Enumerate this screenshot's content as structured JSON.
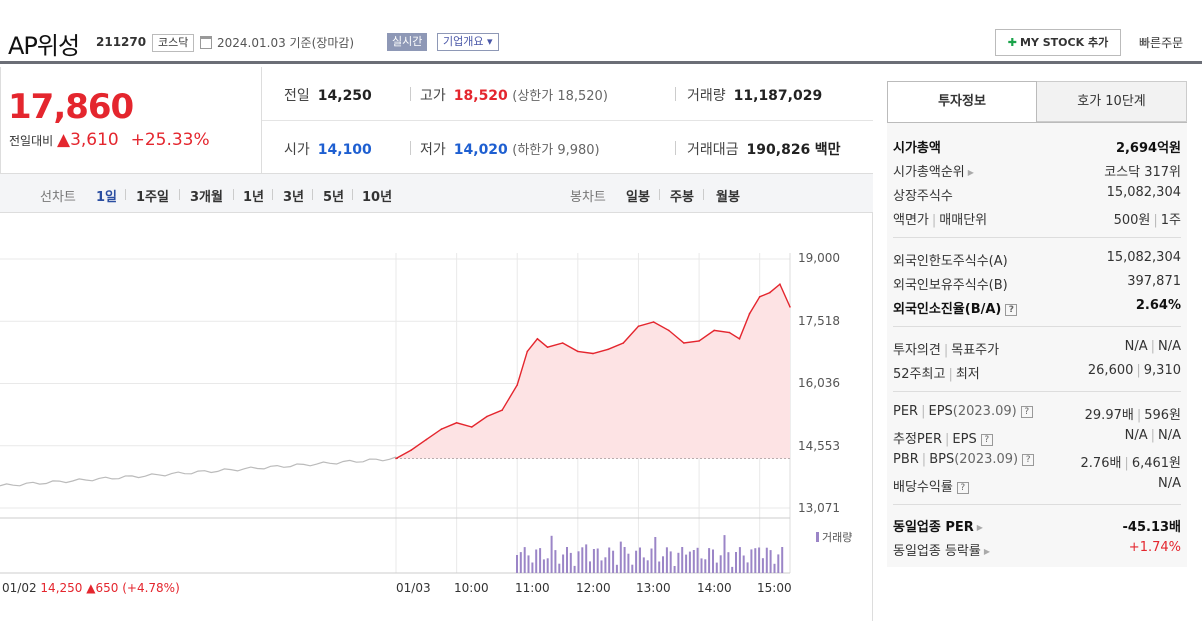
{
  "header": {
    "name": "AP위성",
    "code": "211270",
    "market": "코스닥",
    "date": "2024.01.03 기준(장마감)",
    "live_label": "실시간",
    "company_info_label": "기업개요",
    "mystock_label": "MY STOCK 추가",
    "quick_order_label": "빠른주문"
  },
  "price": {
    "current": "17,860",
    "change_label": "전일대비",
    "change": "3,610",
    "change_pct": "+25.33%"
  },
  "quote": {
    "prev_close": {
      "label": "전일",
      "value": "14,250"
    },
    "high": {
      "label": "고가",
      "value": "18,520",
      "limit_label": "(상한가 18,520)"
    },
    "volume": {
      "label": "거래량",
      "value": "11,187,029"
    },
    "open": {
      "label": "시가",
      "value": "14,100"
    },
    "low": {
      "label": "저가",
      "value": "14,020",
      "limit_label": "(하한가 9,980)"
    },
    "amount": {
      "label": "거래대금",
      "value": "190,826",
      "unit": "백만"
    }
  },
  "period_bar": {
    "line_label": "선차트",
    "line_periods": [
      "1일",
      "1주일",
      "3개월",
      "1년",
      "3년",
      "5년",
      "10년"
    ],
    "active_period": "1일",
    "candle_label": "봉차트",
    "candle_periods": [
      "일봉",
      "주봉",
      "월봉"
    ]
  },
  "chart_data": {
    "type": "line",
    "yticks": [
      "19,000",
      "17,518",
      "16,036",
      "14,553",
      "13,071"
    ],
    "ylim": [
      13071,
      19000
    ],
    "xticks": [
      "01/03",
      "10:00",
      "11:00",
      "12:00",
      "13:00",
      "14:00",
      "15:00"
    ],
    "volume_label": "거래량",
    "prev_day": {
      "date": "01/02",
      "close": "14,250",
      "change": "650",
      "change_pct": "(+4.78%)"
    },
    "prev_close": 14250,
    "series": [
      {
        "x": [
          "09:00",
          "09:15",
          "09:30",
          "09:45",
          "10:00",
          "10:15",
          "10:30",
          "10:45",
          "11:00",
          "11:10",
          "11:20",
          "11:30",
          "11:45",
          "12:00",
          "12:15",
          "12:30",
          "12:45",
          "13:00",
          "13:15",
          "13:30",
          "13:45",
          "14:00",
          "14:15",
          "14:30",
          "14:40",
          "14:50",
          "15:00",
          "15:10",
          "15:20",
          "15:30"
        ],
        "values": [
          14250,
          14450,
          14700,
          14950,
          15100,
          15000,
          15250,
          15400,
          16000,
          16800,
          17100,
          16900,
          17000,
          16800,
          16750,
          16850,
          17000,
          17400,
          17500,
          17300,
          17000,
          17050,
          17300,
          17250,
          17100,
          17700,
          18100,
          18200,
          18400,
          17860
        ]
      }
    ]
  },
  "invest_panel": {
    "tab_active": "투자정보",
    "tab_other": "호가 10단계",
    "market_cap": {
      "label": "시가총액",
      "value": "2,694억원"
    },
    "cap_rank": {
      "label": "시가총액순위",
      "value": "코스닥 317위"
    },
    "listed_shares": {
      "label": "상장주식수",
      "value": "15,082,304"
    },
    "par_unit": {
      "label": "액면가",
      "label2": "매매단위",
      "value": "500원",
      "value2": "1주"
    },
    "foreign_limit": {
      "label": "외국인한도주식수(A)",
      "value": "15,082,304"
    },
    "foreign_hold": {
      "label": "외국인보유주식수(B)",
      "value": "397,871"
    },
    "foreign_rate": {
      "label": "외국인소진율(B/A)",
      "value": "2.64%"
    },
    "opinion": {
      "label": "투자의견",
      "label2": "목표주가",
      "value": "N/A",
      "value2": "N/A"
    },
    "week52": {
      "label": "52주최고",
      "label2": "최저",
      "value": "26,600",
      "value2": "9,310"
    },
    "per": {
      "label": "PER",
      "label2": "EPS",
      "year": "(2023.09)",
      "value": "29.97배",
      "value2": "596원"
    },
    "est_per": {
      "label": "추정PER",
      "label2": "EPS",
      "value": "N/A",
      "value2": "N/A"
    },
    "pbr": {
      "label": "PBR",
      "label2": "BPS",
      "year": "(2023.09)",
      "value": "2.76배",
      "value2": "6,461원"
    },
    "dividend": {
      "label": "배당수익률",
      "value": "N/A"
    },
    "sector_per": {
      "label": "동일업종 PER",
      "value": "-45.13배"
    },
    "sector_rate": {
      "label": "동일업종 등락률",
      "value": "+1.74%"
    }
  },
  "colors": {
    "up": "#e4262e",
    "down": "#1e5fd1",
    "volume": "#9b85c7",
    "accent": "#4a57a8"
  }
}
